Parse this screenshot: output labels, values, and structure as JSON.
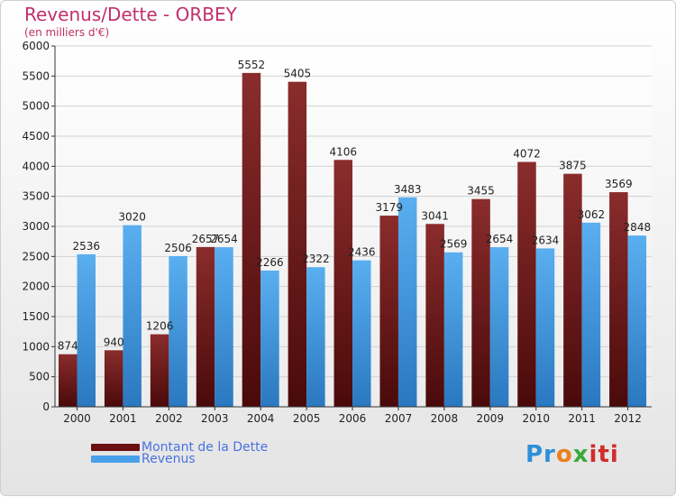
{
  "colors": {
    "title": "#c0306a",
    "dette_top": "#8a2c2c",
    "dette_bottom": "#4a0a0a",
    "revenus_top": "#5aaff0",
    "revenus_bottom": "#2a78c0",
    "legend_text": "#4a72e0"
  },
  "legend": {
    "items": [
      {
        "label": "Montant de la Dette",
        "color": "#6a1010"
      },
      {
        "label": "Revenus",
        "color": "#4aa0e8"
      }
    ]
  },
  "logo": {
    "text": "Proxiti",
    "parts": [
      "Pr",
      "o",
      "x",
      "iti"
    ]
  },
  "chart_data": {
    "type": "bar",
    "title": "Revenus/Dette - ORBEY",
    "subtitle": "(en milliers d'€)",
    "categories": [
      "2000",
      "2001",
      "2002",
      "2003",
      "2004",
      "2005",
      "2006",
      "2007",
      "2008",
      "2009",
      "2010",
      "2011",
      "2012"
    ],
    "series": [
      {
        "name": "Montant de la Dette",
        "values": [
          874,
          940,
          1206,
          2657,
          5552,
          5405,
          4106,
          3179,
          3041,
          3455,
          4072,
          3875,
          3569
        ]
      },
      {
        "name": "Revenus",
        "values": [
          2536,
          3020,
          2506,
          2654,
          2266,
          2322,
          2436,
          3483,
          2569,
          2654,
          2634,
          3062,
          2848
        ]
      }
    ],
    "ylim": [
      0,
      6000
    ],
    "yticks": [
      0,
      500,
      1000,
      1500,
      2000,
      2500,
      3000,
      3500,
      4000,
      4500,
      5000,
      5500,
      6000
    ],
    "grid": true,
    "legend_position": "bottom-left"
  }
}
